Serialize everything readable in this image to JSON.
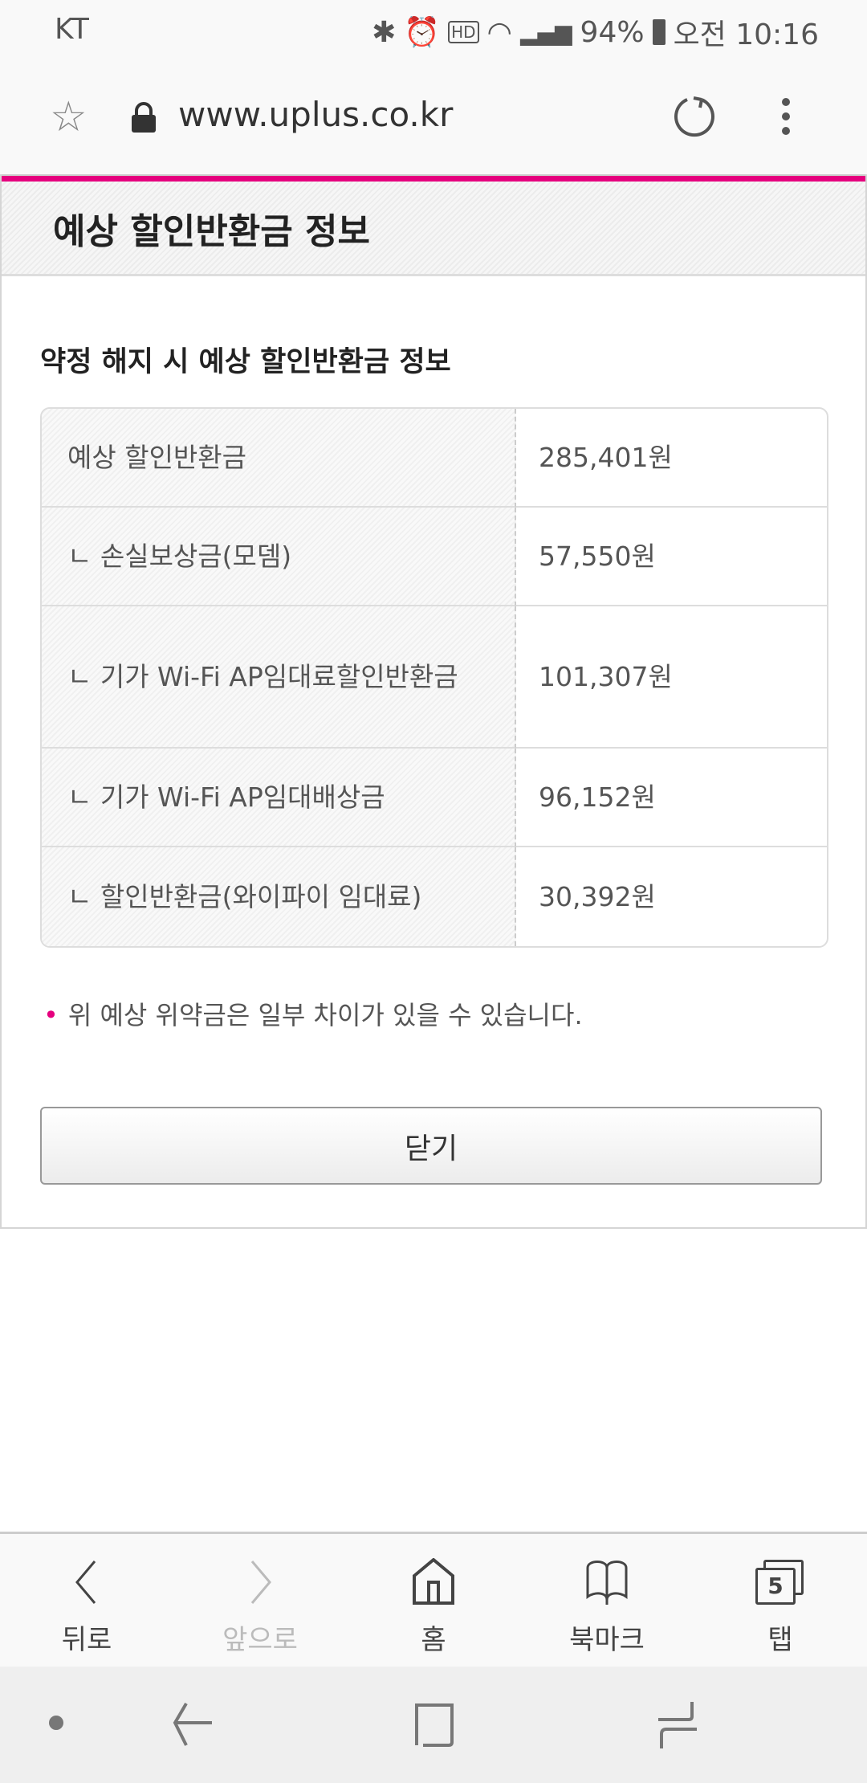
{
  "status_bar": {
    "carrier": "KT",
    "battery": "94%",
    "time": "오전 10:16",
    "icons": [
      "bluetooth-icon",
      "alarm-icon",
      "hd-voice-icon",
      "wifi-icon",
      "signal-icon",
      "battery-icon"
    ]
  },
  "browser": {
    "url": "www.uplus.co.kr"
  },
  "popup": {
    "title": "예상 할인반환금 정보",
    "subtitle": "약정 해지 시 예상 할인반환금 정보",
    "rows": [
      {
        "label": "예상 할인반환금",
        "value": "285,401원"
      },
      {
        "label": "ㄴ 손실보상금(모뎀)",
        "value": "57,550원"
      },
      {
        "label": "ㄴ 기가 Wi-Fi AP임대료할인반환금",
        "value": "101,307원"
      },
      {
        "label": "ㄴ 기가 Wi-Fi AP임대배상금",
        "value": "96,152원"
      },
      {
        "label": "ㄴ 할인반환금(와이파이 임대료)",
        "value": "30,392원"
      }
    ],
    "note": "위 예상 위약금은 일부 차이가 있을 수 있습니다.",
    "close_label": "닫기",
    "accent": "#e5007e"
  },
  "toolbar": {
    "back": "뒤로",
    "forward": "앞으로",
    "home": "홈",
    "bookmarks": "북마크",
    "tabs": "탭",
    "tab_count": "5"
  }
}
